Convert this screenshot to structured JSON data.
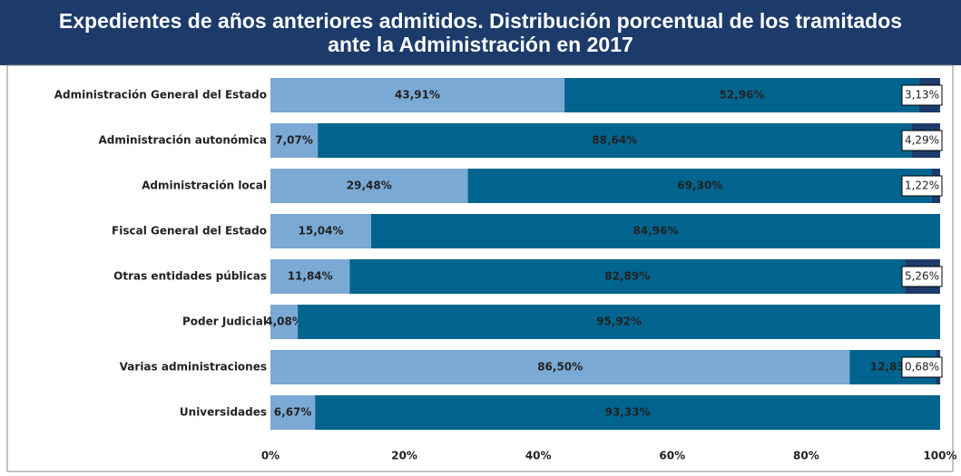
{
  "chart_data": {
    "type": "stacked-bar-horizontal",
    "title": "Expedientes de años anteriores admitidos. Distribución porcentual de los tramitados ante la Administración en 2017",
    "categories": [
      "Administración General del Estado",
      "Administración autonómica",
      "Administración local",
      "Fiscal General del Estado",
      "Otras entidades públicas",
      "Poder Judicial",
      "Varias administraciones",
      "Universidades"
    ],
    "series": [
      {
        "color": "#7aa9d4",
        "values": [
          43.91,
          7.07,
          29.48,
          15.04,
          11.84,
          4.08,
          86.5,
          6.67
        ],
        "value_labels": [
          "43,91%",
          "7,07%",
          "29,48%",
          "15,04%",
          "11,84%",
          "4,08%",
          "86,50%",
          "6,67%"
        ]
      },
      {
        "color": "#00648f",
        "values": [
          52.96,
          88.64,
          69.3,
          84.96,
          82.89,
          95.92,
          12.83,
          93.33
        ],
        "value_labels": [
          "52,96%",
          "88,64%",
          "69,30%",
          "84,96%",
          "82,89%",
          "95,92%",
          "12,83%",
          "93,33%"
        ]
      },
      {
        "color": "#1c3b6a",
        "values": [
          3.13,
          4.29,
          1.22,
          null,
          5.26,
          null,
          0.68,
          null
        ],
        "value_labels": [
          "3,13%",
          "4,29%",
          "1,22%",
          null,
          "5,26%",
          null,
          "0,68%",
          null
        ]
      }
    ],
    "xlim": [
      0,
      100
    ],
    "xticks": [
      {
        "value": 0,
        "label": "0%"
      },
      {
        "value": 20,
        "label": "20%"
      },
      {
        "value": 40,
        "label": "40%"
      },
      {
        "value": 60,
        "label": "60%"
      },
      {
        "value": 80,
        "label": "80%"
      },
      {
        "value": 100,
        "label": "100%"
      }
    ]
  }
}
